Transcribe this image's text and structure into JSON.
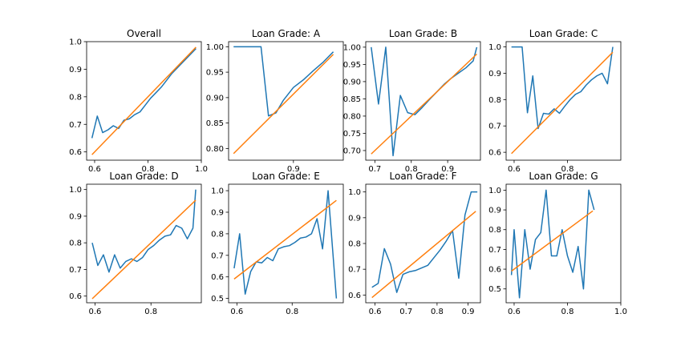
{
  "chart_data": [
    {
      "type": "line",
      "title": "Overall",
      "xlim": [
        0.57,
        1.0
      ],
      "ylim": [
        0.57,
        1.0
      ],
      "xticks": [
        0.6,
        0.8,
        1.0
      ],
      "xtick_labels": [
        "0.6",
        "0.8",
        "1.0"
      ],
      "yticks": [
        0.6,
        0.7,
        0.8,
        0.9,
        1.0
      ],
      "ytick_labels": [
        "0.6",
        "0.7",
        "0.8",
        "0.9",
        "1.0"
      ],
      "series": [
        {
          "color": "#1f77b4",
          "x": [
            0.59,
            0.61,
            0.63,
            0.65,
            0.67,
            0.69,
            0.71,
            0.73,
            0.75,
            0.77,
            0.79,
            0.81,
            0.83,
            0.85,
            0.87,
            0.89,
            0.91,
            0.93,
            0.95,
            0.97,
            0.98
          ],
          "y": [
            0.65,
            0.73,
            0.67,
            0.68,
            0.695,
            0.685,
            0.715,
            0.72,
            0.735,
            0.745,
            0.77,
            0.795,
            0.815,
            0.835,
            0.86,
            0.885,
            0.905,
            0.925,
            0.945,
            0.965,
            0.975
          ]
        },
        {
          "color": "#ff7f0e",
          "x": [
            0.59,
            0.98
          ],
          "y": [
            0.59,
            0.98
          ]
        }
      ]
    },
    {
      "type": "line",
      "title": "Loan Grade: A",
      "xlim": [
        0.77,
        1.0
      ],
      "ylim": [
        0.777,
        1.01
      ],
      "xticks": [
        0.9
      ],
      "xtick_labels": [
        "0.9"
      ],
      "yticks": [
        0.8,
        0.85,
        0.9,
        0.95,
        1.0
      ],
      "ytick_labels": [
        "0.80",
        "0.85",
        "0.90",
        "0.95",
        "1.00"
      ],
      "series": [
        {
          "color": "#1f77b4",
          "x": [
            0.78,
            0.8,
            0.82,
            0.835,
            0.85,
            0.865,
            0.88,
            0.9,
            0.92,
            0.94,
            0.96,
            0.98
          ],
          "y": [
            1.0,
            1.0,
            1.0,
            1.0,
            0.864,
            0.87,
            0.895,
            0.92,
            0.935,
            0.953,
            0.97,
            0.99
          ]
        },
        {
          "color": "#ff7f0e",
          "x": [
            0.78,
            0.98
          ],
          "y": [
            0.79,
            0.985
          ]
        }
      ]
    },
    {
      "type": "line",
      "title": "Loan Grade: B",
      "xlim": [
        0.675,
        0.99
      ],
      "ylim": [
        0.672,
        1.016
      ],
      "xticks": [
        0.7,
        0.8,
        0.9
      ],
      "xtick_labels": [
        "0.7",
        "0.8",
        "0.9"
      ],
      "yticks": [
        0.7,
        0.75,
        0.8,
        0.85,
        0.9,
        0.95,
        1.0
      ],
      "ytick_labels": [
        "0.70",
        "0.75",
        "0.80",
        "0.85",
        "0.90",
        "0.95",
        "1.00"
      ],
      "series": [
        {
          "color": "#1f77b4",
          "x": [
            0.69,
            0.71,
            0.73,
            0.75,
            0.77,
            0.79,
            0.81,
            0.83,
            0.85,
            0.87,
            0.89,
            0.91,
            0.93,
            0.95,
            0.97,
            0.98
          ],
          "y": [
            1.0,
            0.835,
            1.0,
            0.685,
            0.86,
            0.81,
            0.804,
            0.825,
            0.848,
            0.87,
            0.892,
            0.91,
            0.925,
            0.94,
            0.96,
            1.0
          ]
        },
        {
          "color": "#ff7f0e",
          "x": [
            0.69,
            0.98
          ],
          "y": [
            0.69,
            0.98
          ]
        }
      ]
    },
    {
      "type": "line",
      "title": "Loan Grade: C",
      "xlim": [
        0.57,
        1.0
      ],
      "ylim": [
        0.57,
        1.02
      ],
      "xticks": [
        0.6,
        0.8
      ],
      "xtick_labels": [
        "0.6",
        "0.8"
      ],
      "yticks": [
        0.6,
        0.7,
        0.8,
        0.9,
        1.0
      ],
      "ytick_labels": [
        "0.6",
        "0.7",
        "0.8",
        "0.9",
        "1.0"
      ],
      "series": [
        {
          "color": "#1f77b4",
          "x": [
            0.59,
            0.61,
            0.63,
            0.65,
            0.67,
            0.69,
            0.71,
            0.73,
            0.75,
            0.77,
            0.79,
            0.81,
            0.83,
            0.85,
            0.87,
            0.89,
            0.91,
            0.93,
            0.95,
            0.97
          ],
          "y": [
            1.0,
            1.0,
            1.0,
            0.75,
            0.89,
            0.69,
            0.748,
            0.745,
            0.765,
            0.748,
            0.775,
            0.8,
            0.82,
            0.83,
            0.855,
            0.875,
            0.89,
            0.9,
            0.86,
            1.0
          ]
        },
        {
          "color": "#ff7f0e",
          "x": [
            0.59,
            0.97
          ],
          "y": [
            0.595,
            0.98
          ]
        }
      ]
    },
    {
      "type": "line",
      "title": "Loan Grade: D",
      "xlim": [
        0.57,
        0.98
      ],
      "ylim": [
        0.575,
        1.02
      ],
      "xticks": [
        0.6,
        0.8
      ],
      "xtick_labels": [
        "0.6",
        "0.8"
      ],
      "yticks": [
        0.6,
        0.7,
        0.8,
        0.9,
        1.0
      ],
      "ytick_labels": [
        "0.6",
        "0.7",
        "0.8",
        "0.9",
        "1.0"
      ],
      "series": [
        {
          "color": "#1f77b4",
          "x": [
            0.59,
            0.61,
            0.63,
            0.65,
            0.67,
            0.69,
            0.71,
            0.73,
            0.75,
            0.77,
            0.79,
            0.81,
            0.83,
            0.85,
            0.87,
            0.89,
            0.91,
            0.93,
            0.95,
            0.96
          ],
          "y": [
            0.8,
            0.715,
            0.755,
            0.69,
            0.755,
            0.705,
            0.73,
            0.74,
            0.73,
            0.745,
            0.775,
            0.79,
            0.81,
            0.825,
            0.83,
            0.865,
            0.855,
            0.815,
            0.855,
            1.0
          ]
        },
        {
          "color": "#ff7f0e",
          "x": [
            0.59,
            0.96
          ],
          "y": [
            0.59,
            0.96
          ]
        }
      ]
    },
    {
      "type": "line",
      "title": "Loan Grade: E",
      "xlim": [
        0.57,
        0.985
      ],
      "ylim": [
        0.48,
        1.03
      ],
      "xticks": [
        0.6,
        0.8
      ],
      "xtick_labels": [
        "0.6",
        "0.8"
      ],
      "yticks": [
        0.5,
        0.6,
        0.7,
        0.8,
        0.9,
        1.0
      ],
      "ytick_labels": [
        "0.5",
        "0.6",
        "0.7",
        "0.8",
        "0.9",
        "1.0"
      ],
      "series": [
        {
          "color": "#1f77b4",
          "x": [
            0.59,
            0.61,
            0.63,
            0.65,
            0.67,
            0.69,
            0.71,
            0.73,
            0.75,
            0.77,
            0.79,
            0.81,
            0.83,
            0.85,
            0.87,
            0.89,
            0.91,
            0.93,
            0.96
          ],
          "y": [
            0.64,
            0.8,
            0.52,
            0.625,
            0.67,
            0.665,
            0.69,
            0.675,
            0.73,
            0.74,
            0.745,
            0.76,
            0.78,
            0.785,
            0.8,
            0.87,
            0.73,
            1.0,
            0.5
          ]
        },
        {
          "color": "#ff7f0e",
          "x": [
            0.59,
            0.96
          ],
          "y": [
            0.59,
            0.955
          ]
        }
      ]
    },
    {
      "type": "line",
      "title": "Loan Grade: F",
      "xlim": [
        0.57,
        0.94
      ],
      "ylim": [
        0.57,
        1.03
      ],
      "xticks": [
        0.6,
        0.7,
        0.8,
        0.9
      ],
      "xtick_labels": [
        "0.6",
        "0.7",
        "0.8",
        "0.9"
      ],
      "yticks": [
        0.6,
        0.7,
        0.8,
        0.9,
        1.0
      ],
      "ytick_labels": [
        "0.6",
        "0.7",
        "0.8",
        "0.9",
        "1.0"
      ],
      "series": [
        {
          "color": "#1f77b4",
          "x": [
            0.59,
            0.61,
            0.63,
            0.65,
            0.67,
            0.69,
            0.71,
            0.73,
            0.75,
            0.77,
            0.79,
            0.81,
            0.83,
            0.85,
            0.87,
            0.89,
            0.91,
            0.93
          ],
          "y": [
            0.63,
            0.645,
            0.78,
            0.72,
            0.61,
            0.68,
            0.69,
            0.695,
            0.705,
            0.715,
            0.745,
            0.775,
            0.81,
            0.85,
            0.665,
            0.91,
            1.0,
            1.0
          ]
        },
        {
          "color": "#ff7f0e",
          "x": [
            0.59,
            0.925
          ],
          "y": [
            0.59,
            0.925
          ]
        }
      ]
    },
    {
      "type": "line",
      "title": "Loan Grade: G",
      "xlim": [
        0.57,
        1.0
      ],
      "ylim": [
        0.43,
        1.03
      ],
      "xticks": [
        0.6,
        0.8,
        1.0
      ],
      "xtick_labels": [
        "0.6",
        "0.8",
        "1.0"
      ],
      "yticks": [
        0.5,
        0.6,
        0.7,
        0.8,
        0.9,
        1.0
      ],
      "ytick_labels": [
        "0.5",
        "0.6",
        "0.7",
        "0.8",
        "0.9",
        "1.0"
      ],
      "series": [
        {
          "color": "#1f77b4",
          "x": [
            0.59,
            0.6,
            0.62,
            0.64,
            0.66,
            0.68,
            0.7,
            0.72,
            0.74,
            0.76,
            0.78,
            0.8,
            0.82,
            0.84,
            0.86,
            0.88,
            0.9
          ],
          "y": [
            0.57,
            0.8,
            0.455,
            0.8,
            0.6,
            0.75,
            0.785,
            1.0,
            0.667,
            0.667,
            0.8,
            0.667,
            0.584,
            0.715,
            0.5,
            1.0,
            0.9
          ]
        },
        {
          "color": "#ff7f0e",
          "x": [
            0.59,
            0.895
          ],
          "y": [
            0.59,
            0.895
          ]
        }
      ]
    }
  ]
}
